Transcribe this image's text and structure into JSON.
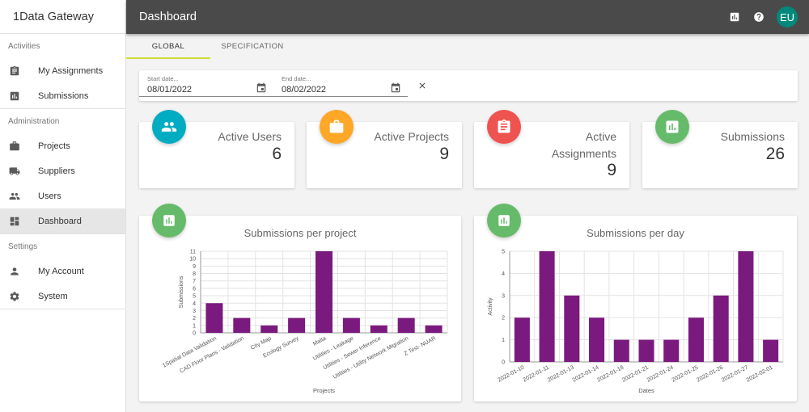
{
  "sidebar": {
    "brand": "1Data Gateway",
    "sections": [
      {
        "label": "Activities",
        "items": [
          {
            "label": "My Assignments",
            "icon": "clipboard-icon"
          },
          {
            "label": "Submissions",
            "icon": "bar-chart-icon"
          }
        ]
      },
      {
        "label": "Administration",
        "items": [
          {
            "label": "Projects",
            "icon": "briefcase-icon"
          },
          {
            "label": "Suppliers",
            "icon": "truck-icon"
          },
          {
            "label": "Users",
            "icon": "people-icon"
          },
          {
            "label": "Dashboard",
            "icon": "dashboard-icon",
            "active": true
          }
        ]
      },
      {
        "label": "Settings",
        "items": [
          {
            "label": "My Account",
            "icon": "person-icon"
          },
          {
            "label": "System",
            "icon": "gear-icon"
          }
        ]
      }
    ]
  },
  "header": {
    "title": "Dashboard",
    "avatar": "EU"
  },
  "tabs": [
    {
      "label": "GLOBAL",
      "active": true
    },
    {
      "label": "SPECIFICATION"
    }
  ],
  "filter": {
    "start_label": "Start date...",
    "start_value": "08/01/2022",
    "end_label": "End date...",
    "end_value": "08/02/2022"
  },
  "stats": [
    {
      "label": "Active Users",
      "value": "6",
      "color": "#00acc1",
      "icon": "people-icon"
    },
    {
      "label": "Active Projects",
      "value": "9",
      "color": "#ffa726",
      "icon": "briefcase-icon"
    },
    {
      "label": "Active Assignments",
      "value": "9",
      "color": "#ef5350",
      "icon": "clipboard-icon"
    },
    {
      "label": "Submissions",
      "value": "26",
      "color": "#66bb6a",
      "icon": "bar-chart-icon"
    }
  ],
  "chart_data": [
    {
      "type": "bar",
      "title": "Submissions per project",
      "xlabel": "Projects",
      "ylabel": "Submissions",
      "ylim": [
        0,
        11
      ],
      "yticks": [
        0,
        1,
        2,
        3,
        4,
        5,
        6,
        7,
        8,
        9,
        10,
        11
      ],
      "categories": [
        "1Spatial Data Validation",
        "CAD Floor Plans - Validation",
        "City Map",
        "Ecology Survey",
        "Malta",
        "Utilities - Leakage",
        "Utilities - Sewer Inference",
        "Utilities - Utility Network Migration",
        "Z Test- NUAR"
      ],
      "values": [
        4,
        2,
        1,
        2,
        11,
        2,
        1,
        2,
        1
      ],
      "color": "#7b1a7e",
      "grid": true
    },
    {
      "type": "bar",
      "title": "Submissions per day",
      "xlabel": "Dates",
      "ylabel": "Activity",
      "ylim": [
        0,
        5
      ],
      "yticks": [
        0,
        1,
        2,
        3,
        4,
        5
      ],
      "categories": [
        "2022-01-10",
        "2022-01-11",
        "2022-01-13",
        "2022-01-14",
        "2022-01-18",
        "2022-01-21",
        "2022-01-24",
        "2022-01-25",
        "2022-01-26",
        "2022-01-27",
        "2022-02-01"
      ],
      "values": [
        2,
        5,
        3,
        2,
        1,
        1,
        1,
        2,
        3,
        5,
        1
      ],
      "color": "#7b1a7e",
      "grid": true
    }
  ]
}
